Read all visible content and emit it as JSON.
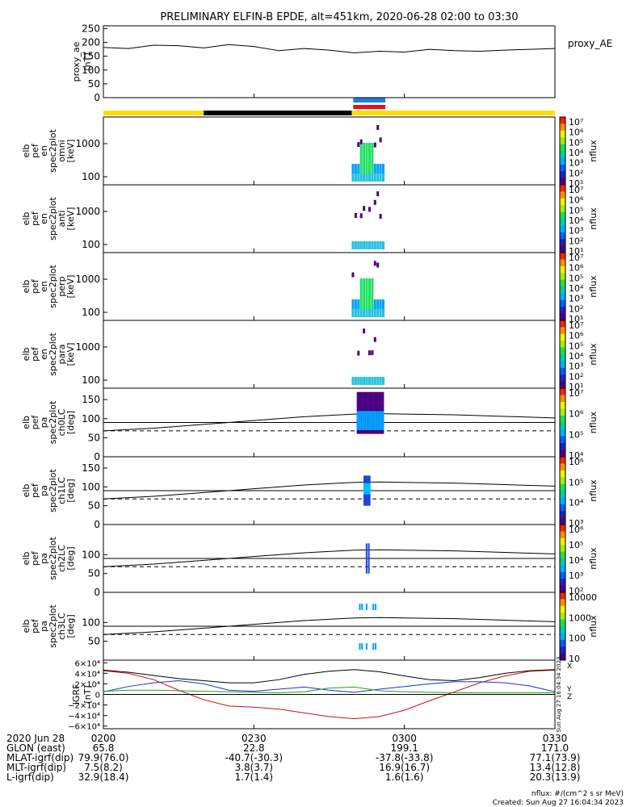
{
  "title": "PRELIMINARY ELFIN-B EPDE, alt=451km, 2020-06-28 02:00 to 03:30",
  "colors": {
    "sci_bar": "#ffdd00",
    "ok_bar": "#000000",
    "blue_bar": "#1e7fe0",
    "red_bar": "#e81010",
    "bx": "#cc1010",
    "by": "#2030c8",
    "bz": "#20a020",
    "bt": "#000000"
  },
  "time_axis": {
    "start": "02:00",
    "end": "03:30",
    "ticks": [
      "0200",
      "0230",
      "0300",
      "0330"
    ],
    "tick_minutes": [
      0,
      30,
      60,
      90
    ]
  },
  "status_bars": [
    {
      "color": "sci_bar",
      "from_min": 0,
      "to_min": 20
    },
    {
      "color": "ok_bar",
      "from_min": 20,
      "to_min": 49.5
    },
    {
      "color": "sci_bar",
      "from_min": 49.5,
      "to_min": 90
    }
  ],
  "science_marks": [
    {
      "color": "blue_bar",
      "from_min": 49.8,
      "to_min": 56.2
    },
    {
      "color": "red_bar",
      "from_min": 49.8,
      "to_min": 56.2
    }
  ],
  "panels": [
    {
      "id": "proxy_ae",
      "ylabel_lines": [
        "proxy_ae",
        "[nT]"
      ],
      "right_label": "proxy_AE",
      "yticks": [
        "250",
        "200",
        "150",
        "100",
        "50",
        "0"
      ],
      "ytick_vals": [
        250,
        200,
        150,
        100,
        50,
        0
      ],
      "ylim": [
        0,
        260
      ],
      "series": {
        "x_min": [
          0,
          5,
          10,
          15,
          20,
          25,
          30,
          35,
          40,
          45,
          50,
          55,
          60,
          65,
          70,
          75,
          80,
          85,
          90
        ],
        "y": [
          182,
          178,
          190,
          188,
          180,
          192,
          185,
          170,
          178,
          172,
          162,
          168,
          165,
          175,
          170,
          168,
          172,
          175,
          178
        ]
      }
    },
    {
      "id": "omni",
      "ylabel_lines": [
        "elb",
        "pef",
        "en",
        "spec2plot",
        "omni",
        "[keV]"
      ],
      "yticks": [
        "1000",
        "100"
      ],
      "colorbar": {
        "ticks": [
          "10⁷",
          "10⁶",
          "10⁵",
          "10⁴",
          "10³",
          "10²",
          "10¹"
        ],
        "label": "nflux"
      }
    },
    {
      "id": "anti",
      "ylabel_lines": [
        "elb",
        "pef",
        "en",
        "spec2plot",
        "anti",
        "[keV]"
      ],
      "yticks": [
        "1000",
        "100"
      ],
      "colorbar": {
        "ticks": [
          "10⁷",
          "10⁶",
          "10⁵",
          "10⁴",
          "10³",
          "10²",
          "10¹"
        ],
        "label": "nflux"
      }
    },
    {
      "id": "perp",
      "ylabel_lines": [
        "elb",
        "pef",
        "en",
        "spec2plot",
        "perp",
        "[keV]"
      ],
      "yticks": [
        "1000",
        "100"
      ],
      "colorbar": {
        "ticks": [
          "10⁷",
          "10⁶",
          "10⁵",
          "10⁴",
          "10³",
          "10²",
          "10¹"
        ],
        "label": "nflux"
      }
    },
    {
      "id": "para",
      "ylabel_lines": [
        "elb",
        "pef",
        "en",
        "spec2plot",
        "para",
        "[keV]"
      ],
      "yticks": [
        "1000",
        "100"
      ],
      "colorbar": {
        "ticks": [
          "10⁷",
          "10⁶",
          "10⁵",
          "10⁴",
          "10³",
          "10²",
          "10¹"
        ],
        "label": "nflux"
      }
    },
    {
      "id": "ch0LC",
      "ylabel_lines": [
        "elb",
        "pef",
        "pa",
        "spec2plot",
        "ch0LC",
        "[deg]"
      ],
      "yticks": [
        "150",
        "100",
        "50",
        "0"
      ],
      "ytick_vals": [
        150,
        100,
        50,
        0
      ],
      "ylim": [
        0,
        180
      ],
      "colorbar": {
        "ticks": [
          "10⁷",
          "10⁶",
          "10⁵",
          "10⁴"
        ],
        "label": "nflux"
      }
    },
    {
      "id": "ch1LC",
      "ylabel_lines": [
        "elb",
        "pef",
        "pa",
        "spec2plot",
        "ch1LC",
        "[deg]"
      ],
      "yticks": [
        "150",
        "100",
        "50",
        "0"
      ],
      "ytick_vals": [
        150,
        100,
        50,
        0
      ],
      "ylim": [
        0,
        180
      ],
      "colorbar": {
        "ticks": [
          "10⁶",
          "10⁵",
          "10⁴",
          "10³"
        ],
        "label": "nflux"
      }
    },
    {
      "id": "ch2LC",
      "ylabel_lines": [
        "elb",
        "pef",
        "pa",
        "spec2plot",
        "ch2LC",
        "[deg]"
      ],
      "yticks": [
        "100",
        "50",
        "0"
      ],
      "ytick_vals": [
        100,
        50,
        0
      ],
      "ylim": [
        0,
        180
      ],
      "colorbar": {
        "ticks": [
          "10⁶",
          "10⁵",
          "10⁴",
          "10³",
          "10²"
        ],
        "label": "nflux"
      }
    },
    {
      "id": "ch3LC",
      "ylabel_lines": [
        "elb",
        "pef",
        "pa",
        "spec2plot",
        "ch3LC",
        "[deg]"
      ],
      "yticks": [
        "100",
        "50"
      ],
      "ytick_vals": [
        100,
        50
      ],
      "ylim": [
        0,
        180
      ],
      "colorbar": {
        "ticks": [
          "10000",
          "1000",
          "100",
          "10"
        ],
        "label": "nflux"
      }
    },
    {
      "id": "igrf",
      "ylabel_lines": [
        "IGRF",
        "[nT]"
      ],
      "yticks": [
        "6×10⁴",
        "4×10⁴",
        "2×10⁴",
        "0",
        "−2×10⁴",
        "−4×10⁴",
        "−6×10⁴"
      ],
      "ytick_vals": [
        60000,
        40000,
        20000,
        0,
        -20000,
        -40000,
        -60000
      ],
      "ylim": [
        -65000,
        65000
      ],
      "legend": [
        "X",
        "Y",
        "Z"
      ]
    }
  ],
  "losscone": {
    "x_min": [
      0,
      10,
      20,
      30,
      40,
      50,
      55,
      60,
      70,
      80,
      90
    ],
    "solid": [
      68,
      75,
      85,
      95,
      105,
      112,
      113,
      112,
      110,
      106,
      102
    ],
    "line1": 90,
    "dashed": 68
  },
  "igrf_series": {
    "x_min": [
      0,
      5,
      10,
      15,
      20,
      25,
      30,
      35,
      40,
      45,
      50,
      55,
      60,
      65,
      70,
      75,
      80,
      85,
      90
    ],
    "bx": [
      45000,
      40000,
      28000,
      8000,
      -10000,
      -22000,
      -24000,
      -28000,
      -35000,
      -42000,
      -46000,
      -42000,
      -30000,
      -12000,
      5000,
      22000,
      35000,
      44000,
      46000
    ],
    "by": [
      5000,
      15000,
      22000,
      26000,
      20000,
      8000,
      6000,
      10000,
      14000,
      8000,
      4000,
      10000,
      15000,
      20000,
      24000,
      24000,
      22000,
      16000,
      5000
    ],
    "bz": [
      6000,
      8000,
      8000,
      7000,
      6000,
      5000,
      4000,
      3000,
      5000,
      12000,
      14000,
      7000,
      5000,
      4000,
      3000,
      3000,
      3000,
      3000,
      3000
    ],
    "bt": [
      46000,
      42000,
      36000,
      30000,
      26000,
      22000,
      22000,
      28000,
      38000,
      44000,
      47000,
      43000,
      35000,
      28000,
      26000,
      32000,
      40000,
      45000,
      47000
    ]
  },
  "footer_rows": [
    {
      "label": "2020 Jun 28",
      "vals": [
        "0200",
        "0230",
        "0300",
        "0330"
      ]
    },
    {
      "label": "GLON (east)",
      "vals": [
        "65.8",
        "22.8",
        "199.1",
        "171.0"
      ]
    },
    {
      "label": "MLAT-igrf(dip)",
      "vals": [
        "79.9(76.0)",
        "-40.7(-30.3)",
        "-37.8(-33.8)",
        "77.1(73.9)"
      ]
    },
    {
      "label": "MLT-igrf(dip)",
      "vals": [
        "7.5(8.2)",
        "3.8(3.7)",
        "16.9(16.7)",
        "13.4(12.8)"
      ]
    },
    {
      "label": "L-igrf(dip)",
      "vals": [
        "32.9(18.4)",
        "1.7(1.4)",
        "1.6(1.6)",
        "20.3(13.9)"
      ]
    }
  ],
  "side_stamp": "Sun Aug 27 16:04:34 2023",
  "footnote1": "nflux: #/(cm^2 s sr MeV)",
  "footnote2": "Created: Sun Aug 27 16:04:34 2023"
}
